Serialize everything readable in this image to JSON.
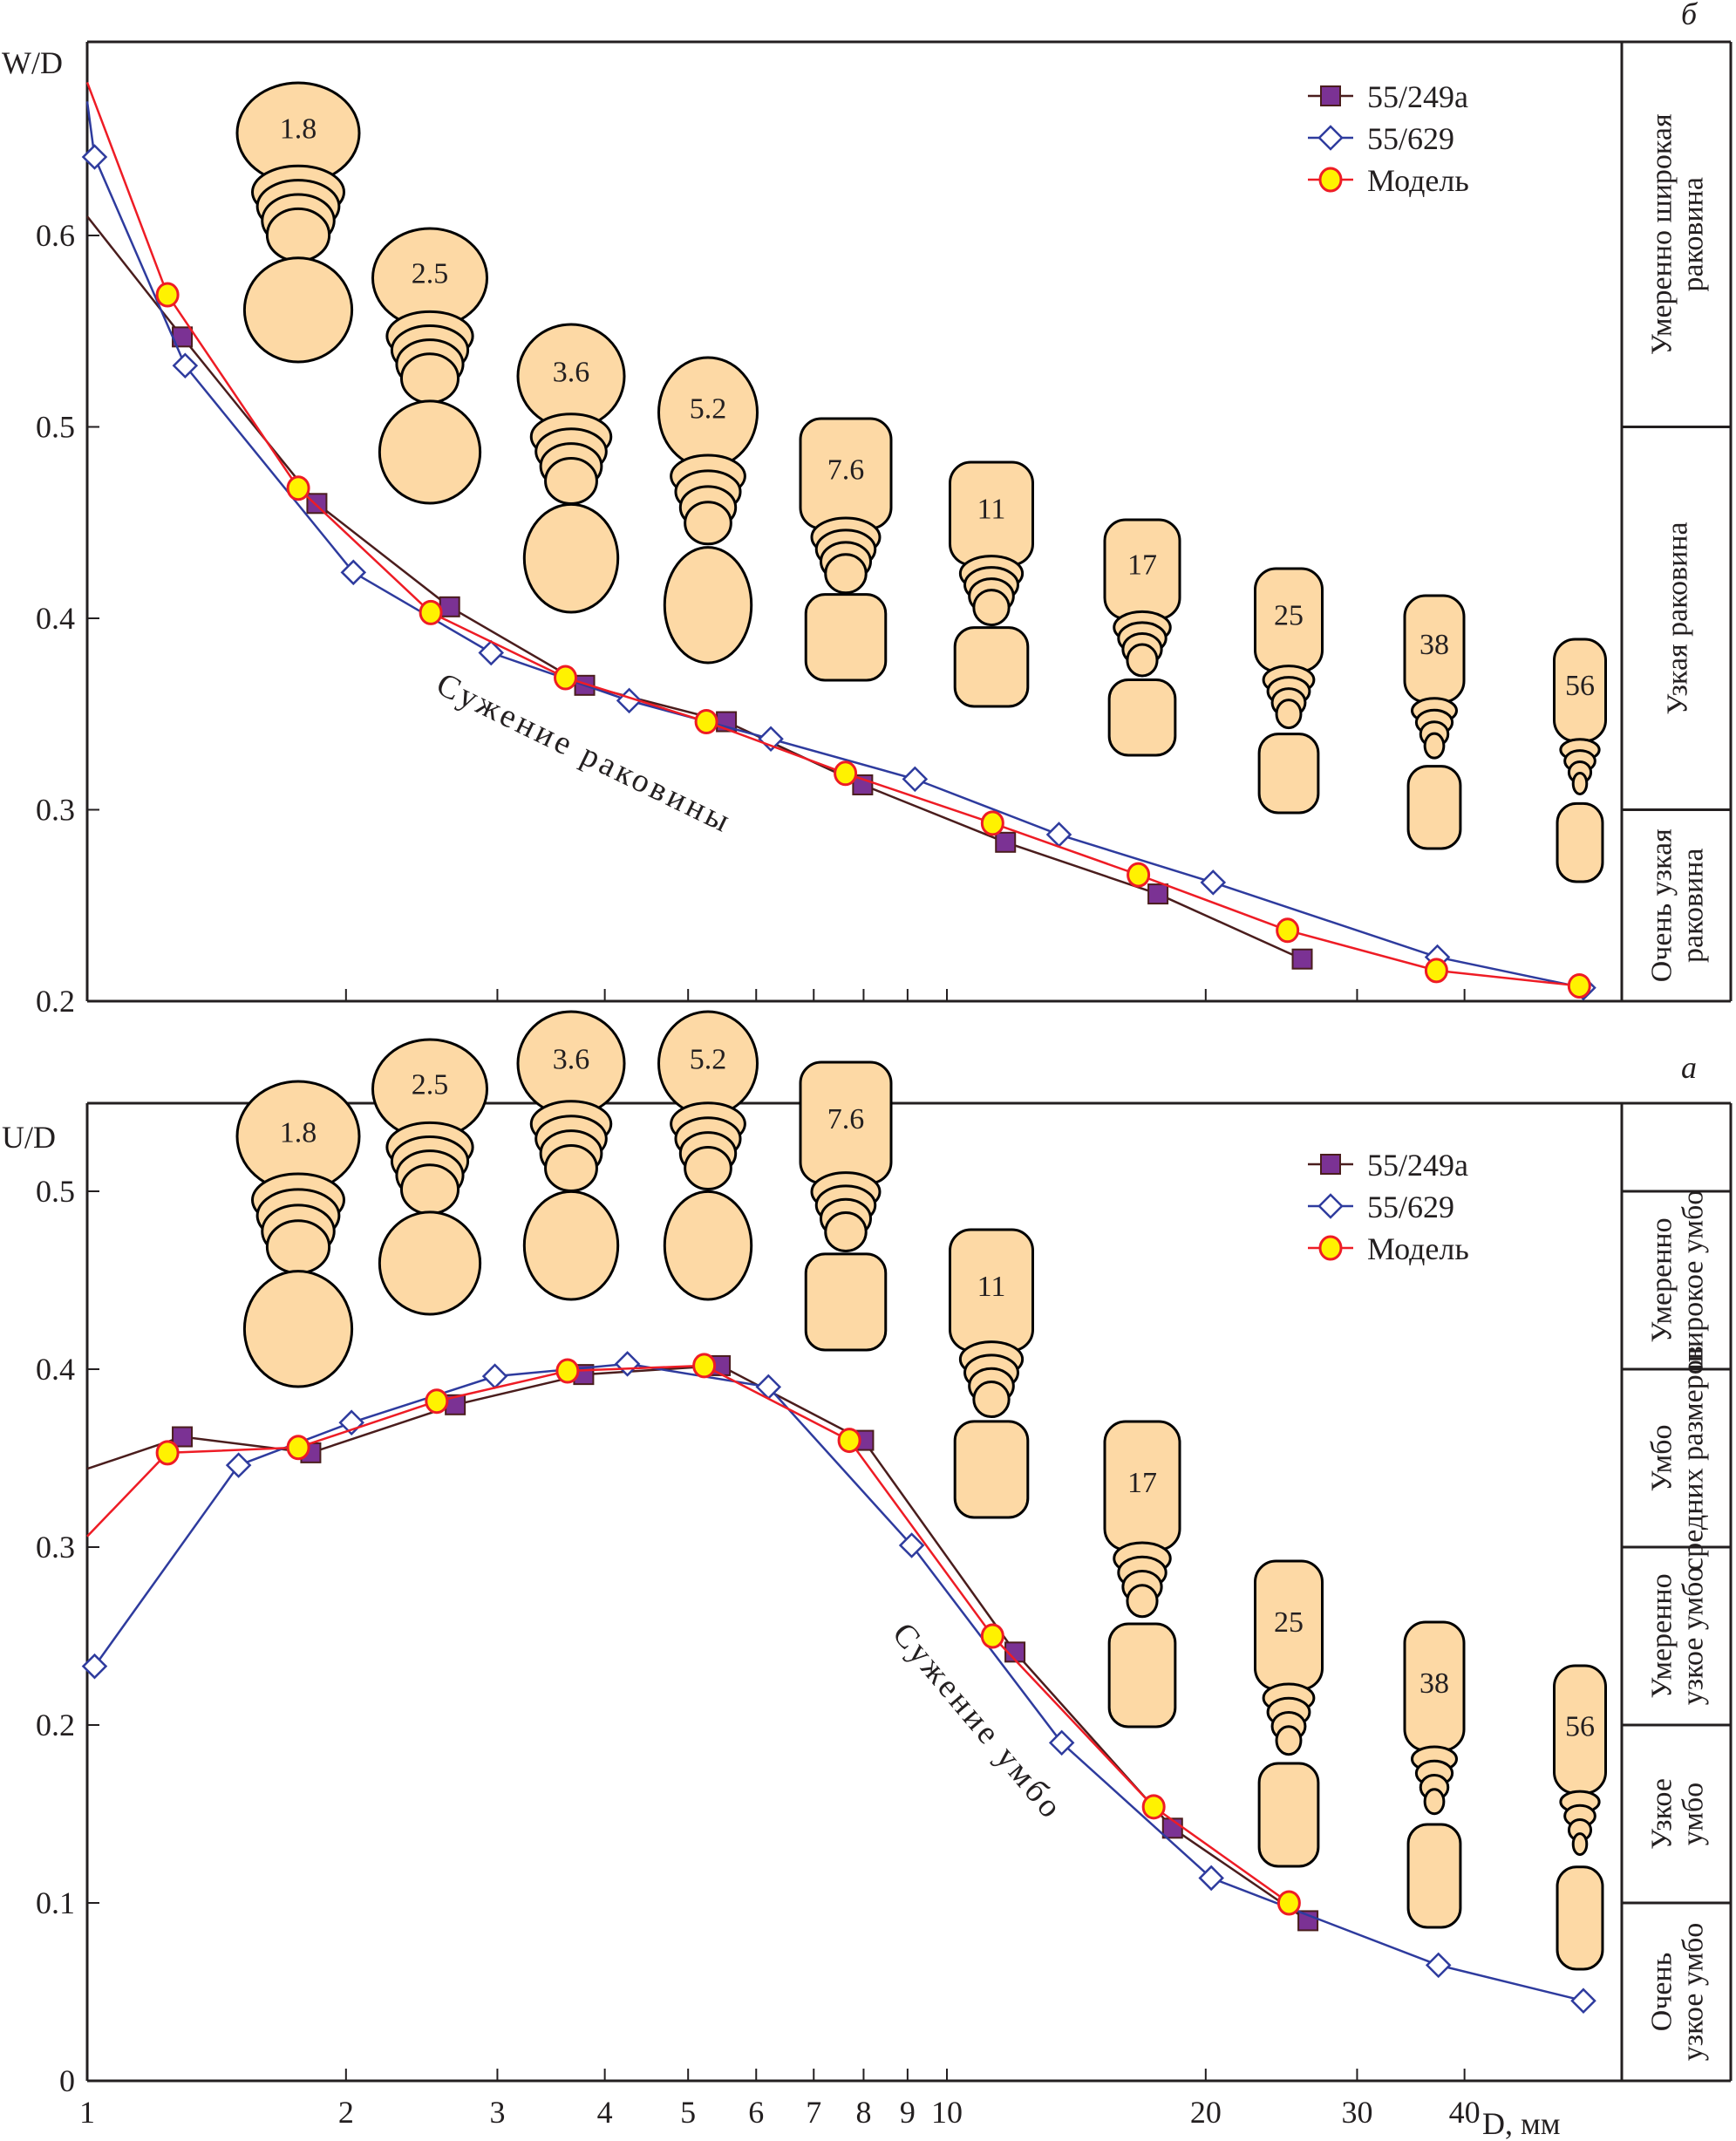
{
  "colors": {
    "series_249a_line": "#4a1d1d",
    "series_249a_fill": "#7b3294",
    "series_629_line": "#2e3b9e",
    "series_629_fill": "#ffffff",
    "model_line": "#ee1c25",
    "model_fill": "#fff200",
    "shell_fill": "#fdd9a5"
  },
  "chart_data": [
    {
      "panel": "б",
      "type": "line",
      "ylabel": "W/D",
      "xlabel": "D, мм",
      "xscale": "log",
      "xlim": [
        1,
        60
      ],
      "ylim": [
        0.2,
        0.7
      ],
      "yticks": [
        "0.2",
        "0.3",
        "0.4",
        "0.5",
        "0.6"
      ],
      "ytick_values": [
        0.2,
        0.3,
        0.4,
        0.5,
        0.6
      ],
      "xticks_minor": [
        2,
        3,
        4,
        5,
        6,
        7,
        8,
        9,
        10,
        20,
        30,
        40
      ],
      "legend": [
        "55/249а",
        "55/629",
        "Модель"
      ],
      "legend_position": "top-right",
      "annotation": "Сужение раковины",
      "categories_side": [
        "Умеренно широкая раковина",
        "Узкая раковина",
        "Очень узкая раковина"
      ],
      "category_bounds": [
        [
          0.5,
          0.7
        ],
        [
          0.3,
          0.5
        ],
        [
          0.2,
          0.3
        ]
      ],
      "shell_labels": [
        "1.8",
        "2.5",
        "3.6",
        "5.2",
        "7.6",
        "11",
        "17",
        "25",
        "38",
        "56"
      ],
      "series": [
        {
          "name": "55/249а",
          "marker": "square",
          "x": [
            1.0,
            1.29,
            1.85,
            2.64,
            3.79,
            5.54,
            7.98,
            11.7,
            17.6,
            25.9
          ],
          "y": [
            0.61,
            0.547,
            0.46,
            0.406,
            0.365,
            0.346,
            0.313,
            0.283,
            0.256,
            0.222
          ],
          "marker_from": 1
        },
        {
          "name": "55/629",
          "marker": "diamond",
          "x": [
            1.0,
            1.02,
            1.3,
            2.04,
            2.95,
            4.27,
            6.24,
            9.18,
            13.5,
            20.4,
            37.2,
            55.0
          ],
          "y": [
            0.67,
            0.641,
            0.532,
            0.424,
            0.382,
            0.357,
            0.337,
            0.316,
            0.287,
            0.262,
            0.223,
            0.207
          ],
          "marker_from": 1
        },
        {
          "name": "Модель",
          "marker": "circle",
          "x": [
            1.0,
            1.24,
            1.76,
            2.51,
            3.6,
            5.25,
            7.62,
            11.3,
            16.7,
            24.9,
            37.1,
            54.4
          ],
          "y": [
            0.68,
            0.569,
            0.468,
            0.403,
            0.369,
            0.346,
            0.319,
            0.293,
            0.266,
            0.237,
            0.216,
            0.208
          ],
          "marker_from": 1
        }
      ]
    },
    {
      "panel": "а",
      "type": "line",
      "ylabel": "U/D",
      "xlabel": "D, мм",
      "xscale": "log",
      "xlim": [
        1,
        60
      ],
      "ylim": [
        0,
        0.53
      ],
      "yticks": [
        "0",
        "0.1",
        "0.2",
        "0.3",
        "0.4",
        "0.5"
      ],
      "ytick_values": [
        0,
        0.1,
        0.2,
        0.3,
        0.4,
        0.5
      ],
      "xticks": [
        "1",
        "2",
        "3",
        "4",
        "5",
        "6",
        "7",
        "8",
        "9",
        "10",
        "20",
        "30",
        "40"
      ],
      "xtick_values": [
        1,
        2,
        3,
        4,
        5,
        6,
        7,
        8,
        9,
        10,
        20,
        30,
        40
      ],
      "legend": [
        "55/249а",
        "55/629",
        "Модель"
      ],
      "legend_position": "top-right",
      "annotation": "Сужение умбо",
      "categories_side": [
        "",
        "Умеренно широкое умбо",
        "Умбо средних размеров",
        "Умеренно узкое умбо",
        "Узкое умбо",
        "Очень узкое умбо"
      ],
      "category_bounds": [
        [
          0.5,
          0.53
        ],
        [
          0.4,
          0.5
        ],
        [
          0.3,
          0.4
        ],
        [
          0.2,
          0.3
        ],
        [
          0.1,
          0.2
        ],
        [
          0.0,
          0.1
        ]
      ],
      "shell_labels": [
        "1.8",
        "2.5",
        "3.6",
        "5.2",
        "7.6",
        "11",
        "17",
        "25",
        "38",
        "56"
      ],
      "series": [
        {
          "name": "55/249а",
          "marker": "square",
          "x": [
            1.0,
            1.29,
            1.82,
            2.68,
            3.78,
            5.45,
            8.0,
            12.0,
            18.3,
            26.3
          ],
          "y": [
            0.344,
            0.362,
            0.353,
            0.38,
            0.397,
            0.402,
            0.36,
            0.241,
            0.142,
            0.09
          ],
          "marker_from": 1
        },
        {
          "name": "55/629",
          "marker": "diamond",
          "x": [
            1.02,
            1.5,
            2.03,
            2.98,
            4.25,
            6.2,
            9.1,
            13.6,
            20.3,
            37.3,
            55.0
          ],
          "y": [
            0.233,
            0.346,
            0.37,
            0.396,
            0.403,
            0.39,
            0.301,
            0.19,
            0.114,
            0.065,
            0.045
          ],
          "marker_from": 0
        },
        {
          "name": "Модель",
          "marker": "circle",
          "x": [
            1.0,
            1.24,
            1.76,
            2.55,
            3.62,
            5.22,
            7.7,
            11.3,
            17.4,
            25.0
          ],
          "y": [
            0.306,
            0.353,
            0.356,
            0.382,
            0.399,
            0.402,
            0.36,
            0.25,
            0.154,
            0.1
          ],
          "marker_from": 1
        }
      ]
    }
  ]
}
